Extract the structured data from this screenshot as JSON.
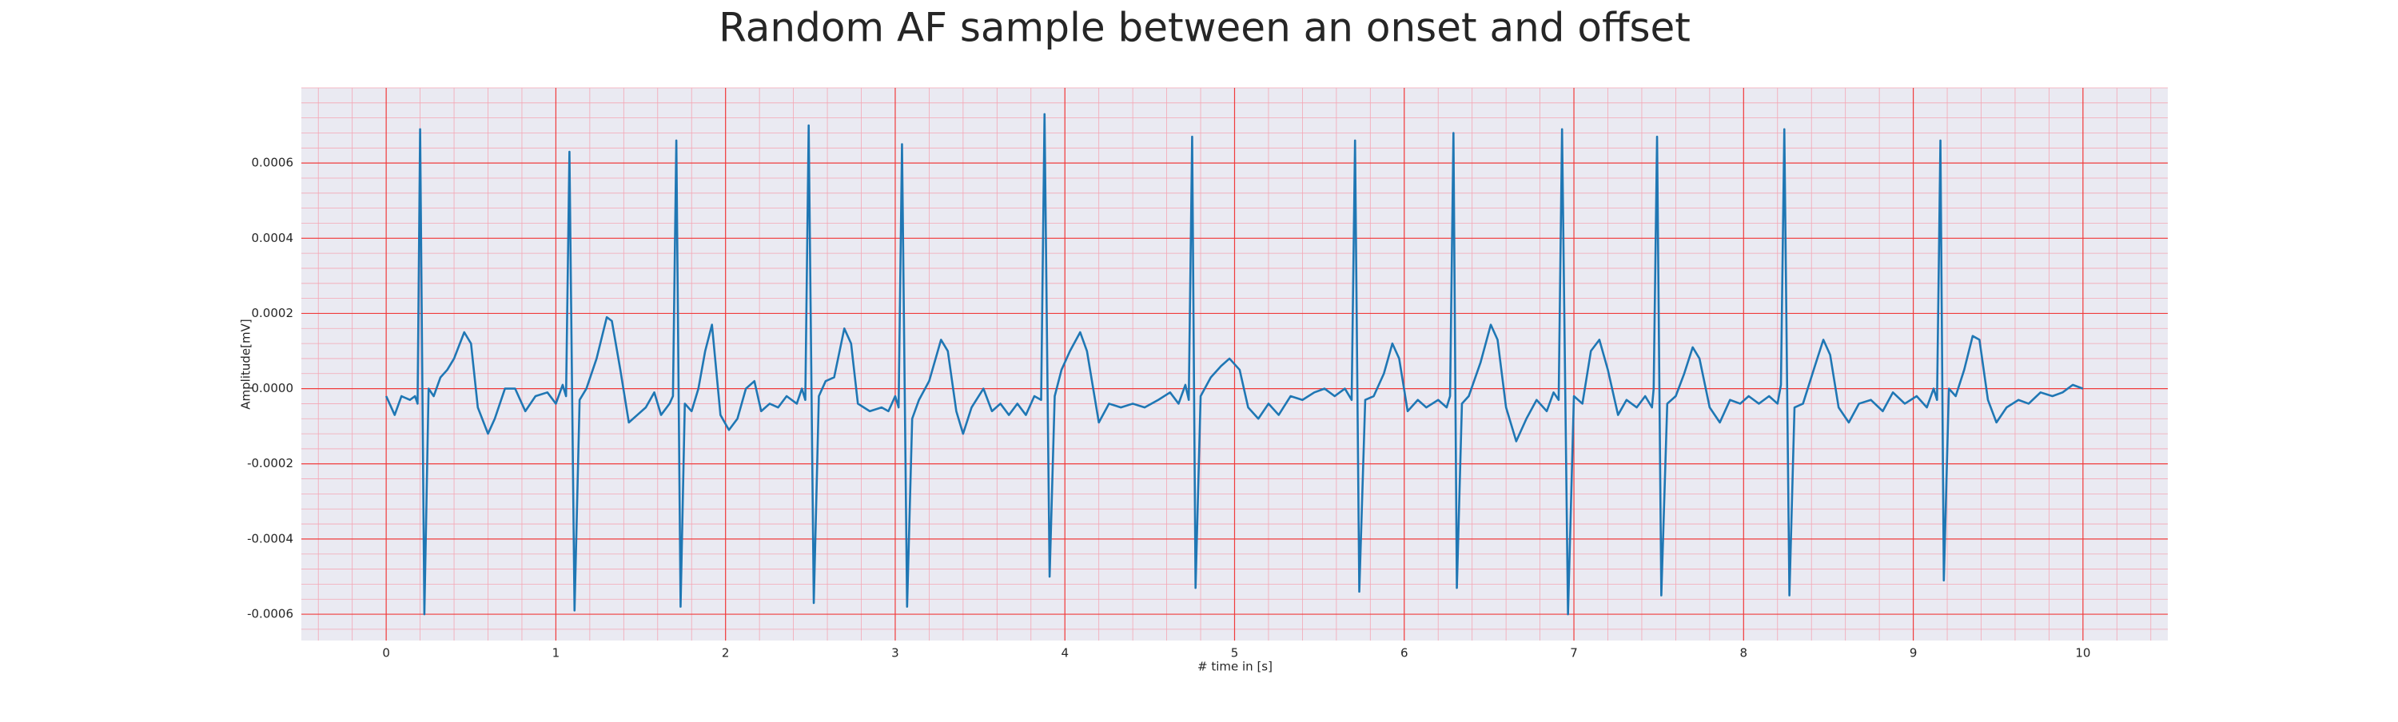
{
  "chart_data": {
    "type": "line",
    "title": "Random AF sample between an onset and offset",
    "xlabel": "# time in [s]",
    "ylabel": "Amplitude[mV]",
    "color": "#1f77b4",
    "grid": true,
    "minor_grid": true,
    "xlim": [
      -0.5,
      10.5
    ],
    "ylim": [
      -0.00067,
      0.0008
    ],
    "xticks": [
      0,
      1,
      2,
      3,
      4,
      5,
      6,
      7,
      8,
      9,
      10
    ],
    "yticks": [
      -0.0006,
      -0.0004,
      -0.0002,
      {
        "value": 0,
        "label": "0.0000"
      },
      0.0002,
      0.0004,
      0.0006
    ],
    "x": [
      0.0,
      0.05,
      0.09,
      0.14,
      0.17,
      0.185,
      0.2,
      0.225,
      0.25,
      0.28,
      0.32,
      0.36,
      0.4,
      0.46,
      0.5,
      0.54,
      0.6,
      0.64,
      0.7,
      0.76,
      0.82,
      0.88,
      0.95,
      1.0,
      1.04,
      1.06,
      1.08,
      1.11,
      1.14,
      1.18,
      1.24,
      1.3,
      1.33,
      1.38,
      1.43,
      1.48,
      1.53,
      1.58,
      1.62,
      1.67,
      1.69,
      1.71,
      1.735,
      1.76,
      1.8,
      1.84,
      1.88,
      1.92,
      1.97,
      2.02,
      2.07,
      2.12,
      2.17,
      2.21,
      2.26,
      2.31,
      2.36,
      2.42,
      2.45,
      2.47,
      2.49,
      2.52,
      2.55,
      2.59,
      2.64,
      2.7,
      2.74,
      2.78,
      2.85,
      2.92,
      2.96,
      3.0,
      3.02,
      3.04,
      3.07,
      3.1,
      3.14,
      3.2,
      3.27,
      3.31,
      3.36,
      3.4,
      3.45,
      3.52,
      3.57,
      3.62,
      3.67,
      3.72,
      3.77,
      3.82,
      3.86,
      3.88,
      3.91,
      3.94,
      3.98,
      4.03,
      4.09,
      4.13,
      4.2,
      4.26,
      4.33,
      4.4,
      4.47,
      4.55,
      4.62,
      4.67,
      4.71,
      4.73,
      4.75,
      4.77,
      4.8,
      4.86,
      4.92,
      4.97,
      5.03,
      5.08,
      5.14,
      5.2,
      5.26,
      5.33,
      5.4,
      5.47,
      5.53,
      5.59,
      5.65,
      5.69,
      5.71,
      5.735,
      5.77,
      5.82,
      5.88,
      5.93,
      5.97,
      6.02,
      6.08,
      6.13,
      6.2,
      6.25,
      6.27,
      6.29,
      6.31,
      6.34,
      6.38,
      6.45,
      6.51,
      6.55,
      6.6,
      6.66,
      6.72,
      6.78,
      6.84,
      6.88,
      6.91,
      6.93,
      6.965,
      7.0,
      7.05,
      7.1,
      7.15,
      7.2,
      7.26,
      7.31,
      7.37,
      7.42,
      7.46,
      7.47,
      7.49,
      7.515,
      7.55,
      7.6,
      7.65,
      7.7,
      7.74,
      7.8,
      7.86,
      7.92,
      7.98,
      8.03,
      8.09,
      8.15,
      8.2,
      8.22,
      8.24,
      8.27,
      8.3,
      8.35,
      8.42,
      8.47,
      8.51,
      8.56,
      8.62,
      8.68,
      8.75,
      8.82,
      8.88,
      8.95,
      9.02,
      9.08,
      9.12,
      9.14,
      9.16,
      9.18,
      9.21,
      9.25,
      9.3,
      9.35,
      9.39,
      9.44,
      9.49,
      9.55,
      9.62,
      9.68,
      9.75,
      9.82,
      9.88,
      9.94,
      10.0
    ],
    "values": [
      -2e-05,
      -7e-05,
      -2e-05,
      -3e-05,
      -2e-05,
      -4e-05,
      0.00069,
      -0.0006,
      0.0,
      -2e-05,
      3e-05,
      5e-05,
      8e-05,
      0.00015,
      0.00012,
      -5e-05,
      -0.00012,
      -8e-05,
      0.0,
      0.0,
      -6e-05,
      -2e-05,
      -1e-05,
      -4e-05,
      1e-05,
      -2e-05,
      0.00063,
      -0.00059,
      -3e-05,
      0.0,
      8e-05,
      0.00019,
      0.00018,
      5e-05,
      -9e-05,
      -7e-05,
      -5e-05,
      -1e-05,
      -7e-05,
      -4e-05,
      -2e-05,
      0.00066,
      -0.00058,
      -4e-05,
      -6e-05,
      0.0,
      0.0001,
      0.00017,
      -7e-05,
      -0.00011,
      -8e-05,
      0.0,
      2e-05,
      -6e-05,
      -4e-05,
      -5e-05,
      -2e-05,
      -4e-05,
      0.0,
      -3e-05,
      0.0007,
      -0.00057,
      -2e-05,
      2e-05,
      3e-05,
      0.00016,
      0.00012,
      -4e-05,
      -6e-05,
      -5e-05,
      -6e-05,
      -2e-05,
      -5e-05,
      0.00065,
      -0.00058,
      -8e-05,
      -3e-05,
      2e-05,
      0.00013,
      0.0001,
      -6e-05,
      -0.00012,
      -5e-05,
      0.0,
      -6e-05,
      -4e-05,
      -7e-05,
      -4e-05,
      -7e-05,
      -2e-05,
      -3e-05,
      0.00073,
      -0.0005,
      -2e-05,
      5e-05,
      0.0001,
      0.00015,
      0.0001,
      -9e-05,
      -4e-05,
      -5e-05,
      -4e-05,
      -5e-05,
      -3e-05,
      -1e-05,
      -4e-05,
      1e-05,
      -3e-05,
      0.00067,
      -0.00053,
      -2e-05,
      3e-05,
      6e-05,
      8e-05,
      5e-05,
      -5e-05,
      -8e-05,
      -4e-05,
      -7e-05,
      -2e-05,
      -3e-05,
      -1e-05,
      0.0,
      -2e-05,
      0.0,
      -3e-05,
      0.00066,
      -0.00054,
      -3e-05,
      -2e-05,
      4e-05,
      0.00012,
      8e-05,
      -6e-05,
      -3e-05,
      -5e-05,
      -3e-05,
      -5e-05,
      -2e-05,
      0.00068,
      -0.00053,
      -4e-05,
      -2e-05,
      7e-05,
      0.00017,
      0.00013,
      -5e-05,
      -0.00014,
      -8e-05,
      -3e-05,
      -6e-05,
      -1e-05,
      -3e-05,
      0.00069,
      -0.0006,
      -2e-05,
      -4e-05,
      0.0001,
      0.00013,
      5e-05,
      -7e-05,
      -3e-05,
      -5e-05,
      -2e-05,
      -5e-05,
      0.0,
      0.00067,
      -0.00055,
      -4e-05,
      -2e-05,
      4e-05,
      0.00011,
      8e-05,
      -5e-05,
      -9e-05,
      -3e-05,
      -4e-05,
      -2e-05,
      -4e-05,
      -2e-05,
      -4e-05,
      1e-05,
      0.00069,
      -0.00055,
      -5e-05,
      -4e-05,
      6e-05,
      0.00013,
      9e-05,
      -5e-05,
      -9e-05,
      -4e-05,
      -3e-05,
      -6e-05,
      -1e-05,
      -4e-05,
      -2e-05,
      -5e-05,
      0.0,
      -3e-05,
      0.00066,
      -0.00051,
      0.0,
      -2e-05,
      5e-05,
      0.00014,
      0.00013,
      -3e-05,
      -9e-05,
      -5e-05,
      -3e-05,
      -4e-05,
      -1e-05,
      -2e-05,
      -1e-05,
      1e-05,
      0.0
    ]
  }
}
